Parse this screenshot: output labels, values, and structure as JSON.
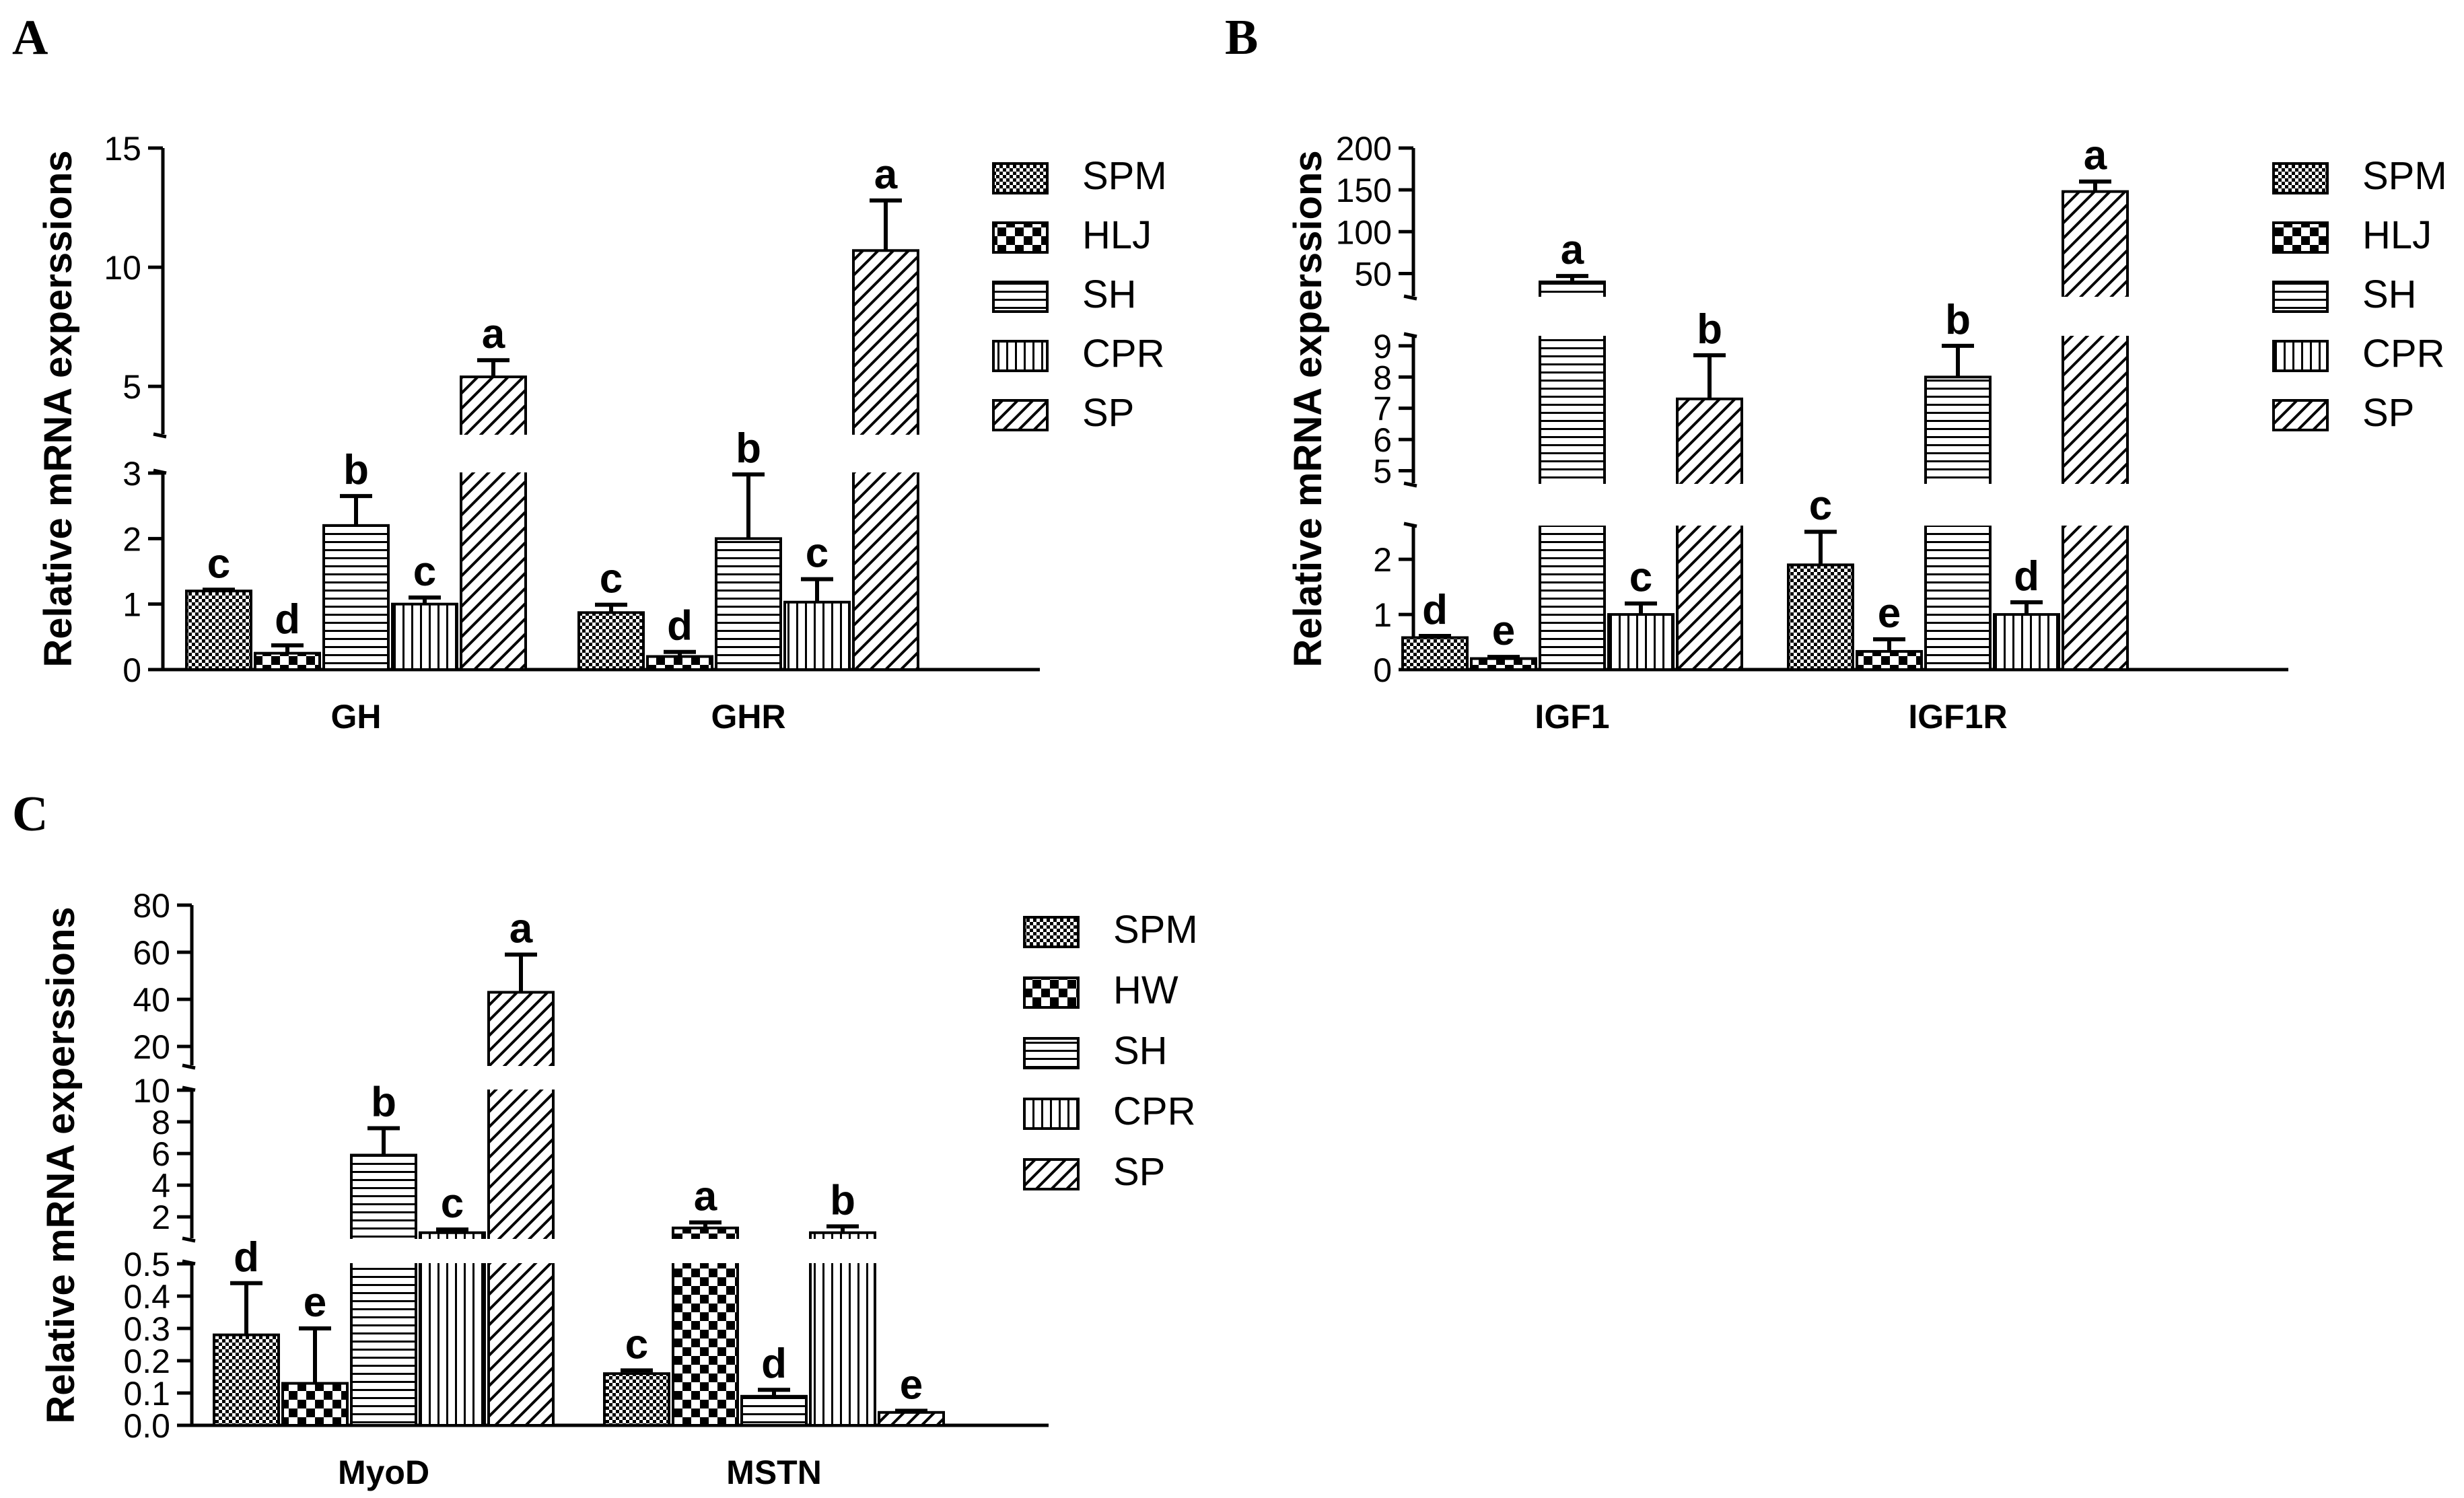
{
  "figure": {
    "panels": [
      "A",
      "B",
      "C"
    ]
  },
  "chart_data": [
    {
      "panel": "A",
      "type": "bar",
      "ylabel": "Relative mRNA experssions",
      "categories": [
        "GH",
        "GHR"
      ],
      "legend": [
        "SPM",
        "HLJ",
        "SH",
        "CPR",
        "SP"
      ],
      "series": [
        {
          "name": "SPM",
          "values": [
            1.2,
            0.87
          ],
          "errors": [
            0.02,
            0.12
          ],
          "letters": [
            "c",
            "c"
          ]
        },
        {
          "name": "HLJ",
          "values": [
            0.25,
            0.2
          ],
          "errors": [
            0.12,
            0.07
          ],
          "letters": [
            "d",
            "d"
          ]
        },
        {
          "name": "SH",
          "values": [
            2.2,
            2.0
          ],
          "errors": [
            0.45,
            0.98
          ],
          "letters": [
            "b",
            "b"
          ]
        },
        {
          "name": "CPR",
          "values": [
            1.0,
            1.03
          ],
          "errors": [
            0.1,
            0.35
          ],
          "letters": [
            "c",
            "c"
          ]
        },
        {
          "name": "SP",
          "values": [
            5.4,
            10.7
          ],
          "errors": [
            0.7,
            2.1
          ],
          "letters": [
            "a",
            "a"
          ]
        }
      ],
      "y_segments": [
        {
          "range": [
            0,
            3
          ],
          "ticks": [
            "0",
            "1",
            "2",
            "3"
          ],
          "tick_values": [
            0,
            1,
            2,
            3
          ]
        },
        {
          "range": [
            3,
            15
          ],
          "ticks": [
            "5",
            "10",
            "15"
          ],
          "tick_values": [
            5,
            10,
            15
          ]
        }
      ]
    },
    {
      "panel": "B",
      "type": "bar",
      "ylabel": "Relative mRNA experssions",
      "categories": [
        "IGF1",
        "IGF1R"
      ],
      "legend": [
        "SPM",
        "HLJ",
        "SH",
        "CPR",
        "SP"
      ],
      "series": [
        {
          "name": "SPM",
          "values": [
            0.58,
            1.9
          ],
          "errors": [
            0.03,
            0.6
          ],
          "letters": [
            "d",
            "c"
          ]
        },
        {
          "name": "HLJ",
          "values": [
            0.2,
            0.33
          ],
          "errors": [
            0.03,
            0.22
          ],
          "letters": [
            "e",
            "e"
          ]
        },
        {
          "name": "SH",
          "values": [
            40,
            8.0
          ],
          "errors": [
            7,
            1.0
          ],
          "letters": [
            "a",
            "b"
          ]
        },
        {
          "name": "CPR",
          "values": [
            1.0,
            1.0
          ],
          "errors": [
            0.2,
            0.22
          ],
          "letters": [
            "c",
            "d"
          ]
        },
        {
          "name": "SP",
          "values": [
            7.3,
            148
          ],
          "errors": [
            1.4,
            12
          ],
          "letters": [
            "b",
            "a"
          ]
        }
      ],
      "y_segments": [
        {
          "range": [
            0,
            2.6
          ],
          "ticks": [
            "0",
            "1",
            "2"
          ],
          "tick_values": [
            0,
            1,
            2
          ]
        },
        {
          "range": [
            4.6,
            9.3
          ],
          "ticks": [
            "5",
            "6",
            "7",
            "8",
            "9"
          ],
          "tick_values": [
            5,
            6,
            7,
            8,
            9
          ]
        },
        {
          "range": [
            23,
            200
          ],
          "ticks": [
            "50",
            "100",
            "150",
            "200"
          ],
          "tick_values": [
            50,
            100,
            150,
            200
          ]
        }
      ]
    },
    {
      "panel": "C",
      "type": "bar",
      "ylabel": "Relative mRNA experssions",
      "categories": [
        "MyoD",
        "MSTN"
      ],
      "legend": [
        "SPM",
        "HW",
        "SH",
        "CPR",
        "SP"
      ],
      "series": [
        {
          "name": "SPM",
          "values": [
            0.28,
            0.16
          ],
          "errors": [
            0.16,
            0.01
          ],
          "letters": [
            "d",
            "c"
          ]
        },
        {
          "name": "HW",
          "values": [
            0.13,
            1.3
          ],
          "errors": [
            0.17,
            0.35
          ],
          "letters": [
            "e",
            "a"
          ]
        },
        {
          "name": "SH",
          "values": [
            5.9,
            0.09
          ],
          "errors": [
            1.7,
            0.02
          ],
          "letters": [
            "b",
            "d"
          ]
        },
        {
          "name": "CPR",
          "values": [
            1.0,
            1.0
          ],
          "errors": [
            0.2,
            0.4
          ],
          "letters": [
            "c",
            "b"
          ]
        },
        {
          "name": "SP",
          "values": [
            43,
            0.04
          ],
          "errors": [
            16,
            0.005
          ],
          "letters": [
            "a",
            "e"
          ]
        }
      ],
      "y_segments": [
        {
          "range": [
            0,
            0.5
          ],
          "ticks": [
            "0.0",
            "0.1",
            "0.2",
            "0.3",
            "0.4",
            "0.5"
          ],
          "tick_values": [
            0,
            0.1,
            0.2,
            0.3,
            0.4,
            0.5
          ]
        },
        {
          "range": [
            0.65,
            10
          ],
          "ticks": [
            "2",
            "4",
            "6",
            "8",
            "10"
          ],
          "tick_values": [
            2,
            4,
            6,
            8,
            10
          ]
        },
        {
          "range": [
            12,
            80
          ],
          "ticks": [
            "20",
            "40",
            "60",
            "80"
          ],
          "tick_values": [
            20,
            40,
            60,
            80
          ]
        }
      ]
    }
  ]
}
